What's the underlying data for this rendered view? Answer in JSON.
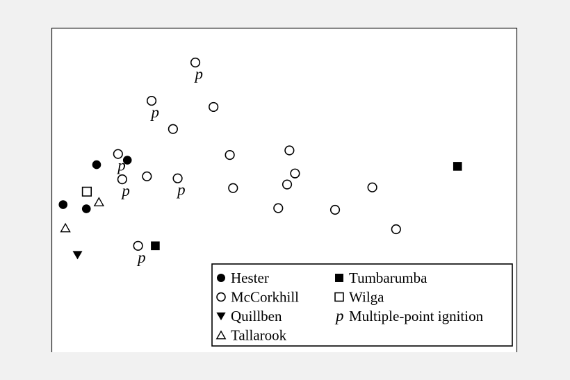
{
  "chart_data": {
    "type": "scatter",
    "title": "",
    "xlabel": "",
    "ylabel": "",
    "xlim": [
      0,
      100
    ],
    "ylim": [
      0,
      100
    ],
    "grid": false,
    "axes": "none",
    "legend_position": "bottom-right",
    "marker_label": "p",
    "series": [
      {
        "name": "Hester",
        "marker": "filled-circle",
        "points": [
          {
            "x": 9.7,
            "y": 57.8,
            "multiple": false
          },
          {
            "x": 16.3,
            "y": 59.2,
            "multiple": false
          },
          {
            "x": 2.5,
            "y": 45.5,
            "multiple": false
          },
          {
            "x": 7.5,
            "y": 44.2,
            "multiple": false
          }
        ]
      },
      {
        "name": "McCorkhill",
        "marker": "open-circle",
        "points": [
          {
            "x": 30.9,
            "y": 89.3,
            "multiple": true
          },
          {
            "x": 21.5,
            "y": 77.5,
            "multiple": true
          },
          {
            "x": 34.8,
            "y": 75.6,
            "multiple": false
          },
          {
            "x": 26.1,
            "y": 68.8,
            "multiple": false
          },
          {
            "x": 14.3,
            "y": 61.1,
            "multiple": true
          },
          {
            "x": 38.3,
            "y": 60.8,
            "multiple": false
          },
          {
            "x": 51.1,
            "y": 62.2,
            "multiple": false
          },
          {
            "x": 52.3,
            "y": 55.1,
            "multiple": false
          },
          {
            "x": 20.5,
            "y": 54.2,
            "multiple": false
          },
          {
            "x": 15.2,
            "y": 53.3,
            "multiple": true
          },
          {
            "x": 27.1,
            "y": 53.6,
            "multiple": true
          },
          {
            "x": 39.0,
            "y": 50.6,
            "multiple": false
          },
          {
            "x": 50.6,
            "y": 51.7,
            "multiple": false
          },
          {
            "x": 68.9,
            "y": 50.8,
            "multiple": false
          },
          {
            "x": 48.7,
            "y": 44.4,
            "multiple": false
          },
          {
            "x": 60.9,
            "y": 43.9,
            "multiple": false
          },
          {
            "x": 74.0,
            "y": 37.9,
            "multiple": false
          },
          {
            "x": 18.6,
            "y": 32.8,
            "multiple": true
          }
        ]
      },
      {
        "name": "Quillben",
        "marker": "filled-down-triangle",
        "points": [
          {
            "x": 5.6,
            "y": 30.0,
            "multiple": false
          }
        ]
      },
      {
        "name": "Tallarook",
        "marker": "open-up-triangle",
        "points": [
          {
            "x": 10.2,
            "y": 46.3,
            "multiple": false
          },
          {
            "x": 3.0,
            "y": 38.3,
            "multiple": false
          }
        ]
      },
      {
        "name": "Tumbarumba",
        "marker": "filled-square",
        "points": [
          {
            "x": 87.2,
            "y": 57.3,
            "multiple": false
          },
          {
            "x": 22.3,
            "y": 32.8,
            "multiple": false
          }
        ]
      },
      {
        "name": "Wilga",
        "marker": "open-square",
        "points": [
          {
            "x": 7.6,
            "y": 49.5,
            "multiple": false
          }
        ]
      }
    ],
    "legend": [
      {
        "label": "Hester",
        "marker": "filled-circle"
      },
      {
        "label": "Tumbarumba",
        "marker": "filled-square"
      },
      {
        "label": "McCorkhill",
        "marker": "open-circle"
      },
      {
        "label": "Wilga",
        "marker": "open-square"
      },
      {
        "label": "Quillben",
        "marker": "filled-down-triangle"
      },
      {
        "label": "Multiple-point ignition",
        "marker": "p-text"
      },
      {
        "label": "Tallarook",
        "marker": "open-up-triangle"
      }
    ]
  }
}
